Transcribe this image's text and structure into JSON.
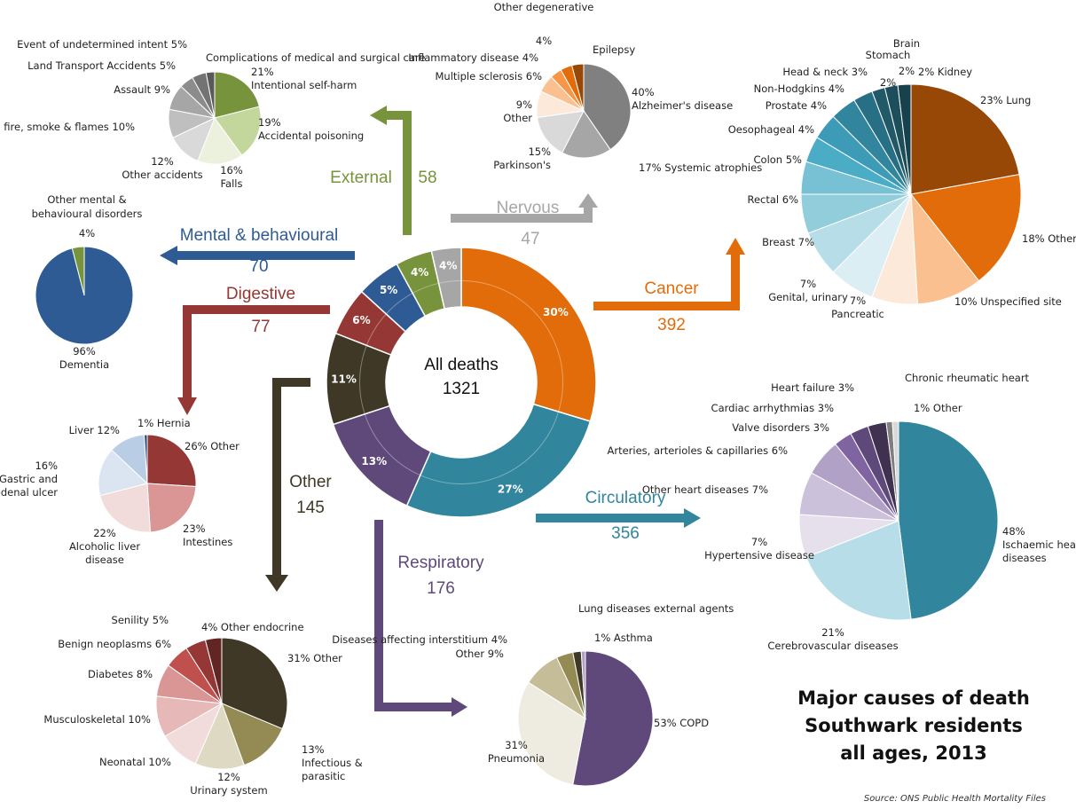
{
  "title_lines": [
    "Major causes of death",
    "Southwark residents",
    "all ages, 2013"
  ],
  "source": "Source: ONS Public Health Mortality Files",
  "center": {
    "label": "All deaths",
    "total": "1321"
  },
  "chart_data": [
    {
      "id": "all",
      "type": "donut",
      "total": 1321,
      "series": [
        {
          "name": "Cancer",
          "value": 392,
          "pct": "30%",
          "color": "#e36c0a"
        },
        {
          "name": "Circulatory",
          "value": 356,
          "pct": "27%",
          "color": "#31859c"
        },
        {
          "name": "Respiratory",
          "value": 176,
          "pct": "13%",
          "color": "#5f497a"
        },
        {
          "name": "Other",
          "value": 145,
          "pct": "11%",
          "color": "#3f3826"
        },
        {
          "name": "Digestive",
          "value": 77,
          "pct": "6%",
          "color": "#953735"
        },
        {
          "name": "Mental & behavioural",
          "value": 70,
          "pct": "5%",
          "color": "#2e5b93"
        },
        {
          "name": "External",
          "value": 58,
          "pct": "4%",
          "color": "#77933c"
        },
        {
          "name": "Nervous",
          "value": 47,
          "pct": "4%",
          "color": "#a6a6a6"
        }
      ]
    },
    {
      "id": "cancer",
      "type": "pie",
      "slices": [
        {
          "label": "Lung",
          "pct": "23%",
          "value": 23,
          "color": "#974806"
        },
        {
          "label": "Other",
          "pct": "18%",
          "value": 18,
          "color": "#e36c0a"
        },
        {
          "label": "Unspecified site",
          "pct": "10%",
          "value": 10,
          "color": "#fac090"
        },
        {
          "label": "Pancreatic",
          "pct": "7%",
          "value": 7,
          "color": "#fde9d9"
        },
        {
          "label": "Genital, urinary",
          "pct": "7%",
          "value": 7,
          "color": "#daeef3"
        },
        {
          "label": "Breast",
          "pct": "7%",
          "value": 7,
          "color": "#b7dde8"
        },
        {
          "label": "Rectal",
          "pct": "6%",
          "value": 6,
          "color": "#92cddc"
        },
        {
          "label": "Colon",
          "pct": "5%",
          "value": 5,
          "color": "#78c0d4"
        },
        {
          "label": "Oesophageal",
          "pct": "4%",
          "value": 4,
          "color": "#4bacc6"
        },
        {
          "label": "Prostate",
          "pct": "4%",
          "value": 4,
          "color": "#3d9bb8"
        },
        {
          "label": "Non-Hodgkins",
          "pct": "4%",
          "value": 4,
          "color": "#31859c"
        },
        {
          "label": "Head & neck",
          "pct": "3%",
          "value": 3,
          "color": "#276f84"
        },
        {
          "label": "Stomach",
          "pct": "2%",
          "value": 2,
          "color": "#215968"
        },
        {
          "label": "Brain",
          "pct": "2%",
          "value": 2,
          "color": "#1c4e5c"
        },
        {
          "label": "Kidney",
          "pct": "2%",
          "value": 2,
          "color": "#17414d"
        }
      ]
    },
    {
      "id": "circulatory",
      "type": "pie",
      "slices": [
        {
          "label": "Ischaemic heart diseases",
          "pct": "48%",
          "value": 48,
          "color": "#31859c"
        },
        {
          "label": "Cerebrovascular diseases",
          "pct": "21%",
          "value": 21,
          "color": "#b7dde8"
        },
        {
          "label": "Hypertensive disease",
          "pct": "7%",
          "value": 7,
          "color": "#e5e0ec"
        },
        {
          "label": "Other heart diseases",
          "pct": "7%",
          "value": 7,
          "color": "#ccc1da"
        },
        {
          "label": "Arteries, arterioles & capillaries",
          "pct": "6%",
          "value": 6,
          "color": "#b2a1c7"
        },
        {
          "label": "Valve disorders",
          "pct": "3%",
          "value": 3,
          "color": "#8064a2"
        },
        {
          "label": "Cardiac arrhythmias",
          "pct": "3%",
          "value": 3,
          "color": "#5f497a"
        },
        {
          "label": "Heart failure",
          "pct": "3%",
          "value": 3,
          "color": "#403151"
        },
        {
          "label": "Chronic rheumatic heart",
          "pct": "1%",
          "value": 1,
          "color": "#7f7f7f"
        },
        {
          "label": "Other",
          "pct": "1%",
          "value": 1,
          "color": "#d9d9d9"
        }
      ]
    },
    {
      "id": "respiratory",
      "type": "pie",
      "slices": [
        {
          "label": "COPD",
          "pct": "53%",
          "value": 53,
          "color": "#5f497a"
        },
        {
          "label": "Pneumonia",
          "pct": "31%",
          "value": 31,
          "color": "#eeece1"
        },
        {
          "label": "Other",
          "pct": "9%",
          "value": 9,
          "color": "#c4bd97"
        },
        {
          "label": "Diseases affecting interstitium",
          "pct": "4%",
          "value": 4,
          "color": "#948a54"
        },
        {
          "label": "Lung diseases external agents",
          "pct": "2%",
          "value": 2,
          "color": "#3f3826"
        },
        {
          "label": "Asthma",
          "pct": "1%",
          "value": 1,
          "color": "#b2a1c7"
        }
      ]
    },
    {
      "id": "other",
      "type": "pie",
      "slices": [
        {
          "label": "Other",
          "pct": "31%",
          "value": 31,
          "color": "#3f3826"
        },
        {
          "label": "Infectious & parasitic",
          "pct": "13%",
          "value": 13,
          "color": "#948a54"
        },
        {
          "label": "Urinary system",
          "pct": "12%",
          "value": 12,
          "color": "#ddd9c3"
        },
        {
          "label": "Neonatal",
          "pct": "10%",
          "value": 10,
          "color": "#f2dcdb"
        },
        {
          "label": "Musculoskeletal",
          "pct": "10%",
          "value": 10,
          "color": "#e6b9b8"
        },
        {
          "label": "Diabetes",
          "pct": "8%",
          "value": 8,
          "color": "#d99694"
        },
        {
          "label": "Benign neoplasms",
          "pct": "6%",
          "value": 6,
          "color": "#c0504d"
        },
        {
          "label": "Senility",
          "pct": "5%",
          "value": 5,
          "color": "#953735"
        },
        {
          "label": "Other endocrine",
          "pct": "4%",
          "value": 4,
          "color": "#632523"
        }
      ]
    },
    {
      "id": "digestive",
      "type": "pie",
      "slices": [
        {
          "label": "Other",
          "pct": "26%",
          "value": 26,
          "color": "#953735"
        },
        {
          "label": "Intestines",
          "pct": "23%",
          "value": 23,
          "color": "#d99694"
        },
        {
          "label": "Alcoholic liver disease",
          "pct": "22%",
          "value": 22,
          "color": "#f2dcdb"
        },
        {
          "label": "Gastric and duodenal ulcer",
          "pct": "16%",
          "value": 16,
          "color": "#dbe5f1"
        },
        {
          "label": "Liver",
          "pct": "12%",
          "value": 12,
          "color": "#b9cde5"
        },
        {
          "label": "Hernia",
          "pct": "1%",
          "value": 1,
          "color": "#1f497d"
        }
      ]
    },
    {
      "id": "mental",
      "type": "pie",
      "slices": [
        {
          "label": "Dementia",
          "pct": "96%",
          "value": 96,
          "color": "#2e5b93"
        },
        {
          "label": "Other mental & behavioural disorders",
          "pct": "4%",
          "value": 4,
          "color": "#77933c"
        }
      ]
    },
    {
      "id": "external",
      "type": "pie",
      "slices": [
        {
          "label": "Intentional self-harm",
          "pct": "21%",
          "value": 21,
          "color": "#77933c"
        },
        {
          "label": "Accidental poisoning",
          "pct": "19%",
          "value": 19,
          "color": "#c3d69b"
        },
        {
          "label": "Falls",
          "pct": "16%",
          "value": 16,
          "color": "#ebf1dd"
        },
        {
          "label": "Other accidents",
          "pct": "12%",
          "value": 12,
          "color": "#d9d9d9"
        },
        {
          "label": "Exposure to fire, smoke & flames",
          "pct": "10%",
          "value": 10,
          "color": "#bfbfbf"
        },
        {
          "label": "Assault",
          "pct": "9%",
          "value": 9,
          "color": "#a6a6a6"
        },
        {
          "label": "Land Transport Accidents",
          "pct": "5%",
          "value": 5,
          "color": "#8c8c8c"
        },
        {
          "label": "Event of undetermined intent",
          "pct": "5%",
          "value": 5,
          "color": "#737373"
        },
        {
          "label": "Complications of medical and surgical care",
          "pct": "3%",
          "value": 3,
          "color": "#595959"
        }
      ]
    },
    {
      "id": "nervous",
      "type": "pie",
      "slices": [
        {
          "label": "Alzheimer's disease",
          "pct": "40%",
          "value": 40,
          "color": "#808080"
        },
        {
          "label": "Systemic atrophies",
          "pct": "17%",
          "value": 17,
          "color": "#a6a6a6"
        },
        {
          "label": "Parkinson's",
          "pct": "15%",
          "value": 15,
          "color": "#d9d9d9"
        },
        {
          "label": "Other",
          "pct": "9%",
          "value": 9,
          "color": "#fde9d9"
        },
        {
          "label": "Multiple sclerosis",
          "pct": "6%",
          "value": 6,
          "color": "#fac090"
        },
        {
          "label": "Inflammatory disease",
          "pct": "4%",
          "value": 4,
          "color": "#f79646"
        },
        {
          "label": "Other degenerative",
          "pct": "4%",
          "value": 4,
          "color": "#e36c0a"
        },
        {
          "label": "Epilepsy",
          "pct": "4%",
          "value": 4,
          "color": "#974806"
        }
      ]
    }
  ]
}
